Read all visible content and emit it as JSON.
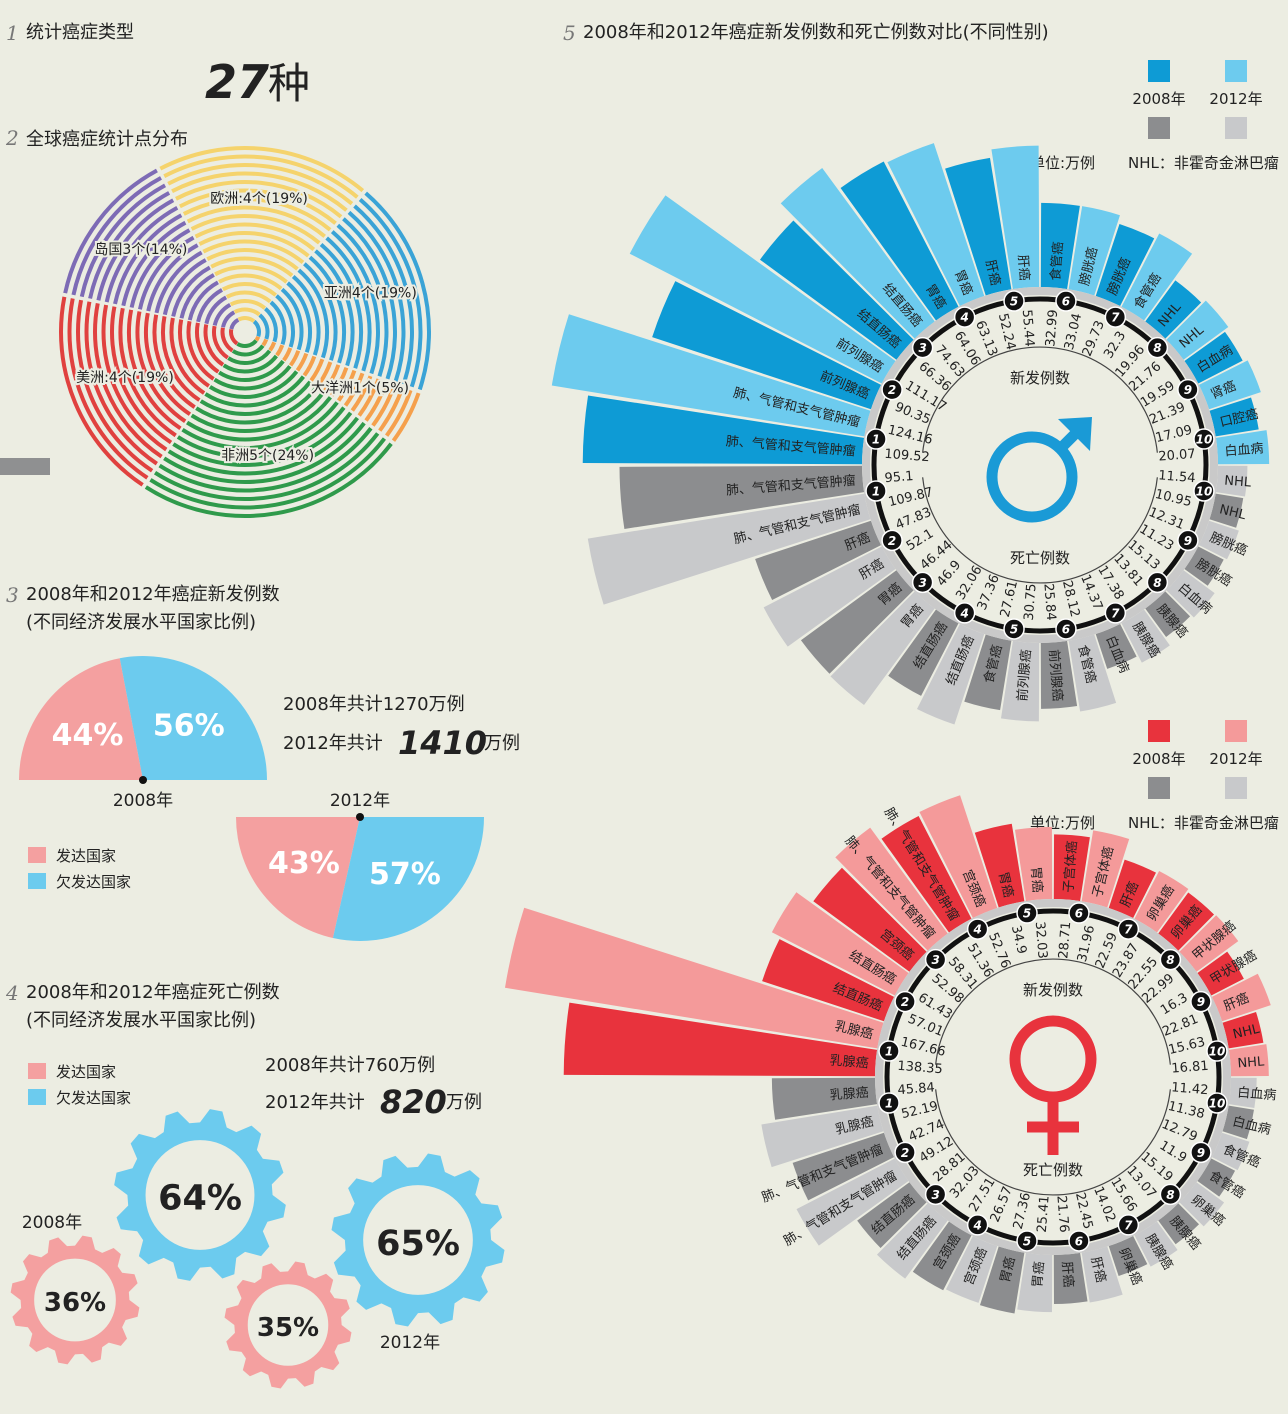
{
  "header": {
    "section": "1",
    "title": "统计癌症类型",
    "value": "27",
    "unit": "种"
  },
  "chart_data": [
    {
      "type": "ring-pie",
      "section": "2",
      "title": "全球癌症统计点分布",
      "values": [
        19,
        19,
        5,
        24,
        19,
        14
      ],
      "value_labels": [
        "欧洲:4个(19%)",
        "亚洲4个(19%)",
        "大洋洲1个(5%)",
        "非洲5个(24%)",
        "美洲:4个(19%)",
        "岛国3个(14%)"
      ],
      "colors": [
        "#f5d36c",
        "#3aa3d6",
        "#f5a04c",
        "#2f9a4b",
        "#e0413f",
        "#7d6bb5"
      ]
    },
    {
      "type": "half-pie",
      "section": "3",
      "title": "2008年和2012年癌症新发例数",
      "subtitle": "(不同经济发展水平国家比例)",
      "categories": [
        "2008年",
        "2012年"
      ],
      "series": [
        {
          "name": "发达国家",
          "color": "#f4a0a0",
          "values": [
            44,
            43
          ],
          "value_labels": [
            "44%",
            "43%"
          ]
        },
        {
          "name": "欠发达国家",
          "color": "#6ccbee",
          "values": [
            56,
            57
          ],
          "value_labels": [
            "56%",
            "57%"
          ]
        }
      ],
      "annotations": [
        "2008年共计1270万例",
        "2012年共计",
        "1410",
        "万例"
      ]
    },
    {
      "type": "gear",
      "section": "4",
      "title": "2008年和2012年癌症死亡例数",
      "subtitle": "(不同经济发展水平国家比例)",
      "categories": [
        "2008年",
        "2012年"
      ],
      "series": [
        {
          "name": "发达国家",
          "color": "#f4a0a0",
          "values": [
            36,
            35
          ],
          "value_labels": [
            "36%",
            "35%"
          ]
        },
        {
          "name": "欠发达国家",
          "color": "#6ccbee",
          "values": [
            64,
            65
          ],
          "value_labels": [
            "64%",
            "65%"
          ]
        }
      ],
      "annotations": [
        "2008年共计760万例",
        "2012年共计",
        "820",
        "万例"
      ]
    },
    {
      "type": "radial-bar",
      "section": "5",
      "title": "2008年和2012年癌症新发例数和死亡例数对比(不同性别)",
      "legend": [
        "2008年",
        "2012年"
      ],
      "unit": "单位:万例",
      "note": "NHL：非霍奇金淋巴瘤",
      "ranks": [
        1,
        2,
        3,
        4,
        5,
        6,
        7,
        8,
        9,
        10
      ],
      "groups": [
        {
          "name": "新发例数",
          "series": [
            {
              "color": "#0e9bd5",
              "categories": [
                "肺、气管和支气管肿瘤",
                "前列腺癌",
                "结直肠癌",
                "胃癌",
                "肝癌",
                "食管癌",
                "膀胱癌",
                "NHL",
                "白血病",
                "口腔癌"
              ],
              "values": [
                109.52,
                90.35,
                66.36,
                64.06,
                52.24,
                32.99,
                29.73,
                19.96,
                19.59,
                17.09
              ]
            },
            {
              "color": "#6dcbee",
              "categories": [
                "肺、气管和支气管肿瘤",
                "前列腺癌",
                "结直肠癌",
                "胃癌",
                "肝癌",
                "膀胱癌",
                "食管癌",
                "NHL",
                "肾癌",
                "白血病"
              ],
              "values": [
                124.16,
                111.17,
                74.63,
                63.13,
                55.44,
                33.04,
                32.3,
                21.76,
                21.39,
                20.07
              ]
            }
          ]
        },
        {
          "name": "死亡例数",
          "series": [
            {
              "color": "#8c8d8f",
              "categories": [
                "肺、气管和支气管肿瘤",
                "肝癌",
                "胃癌",
                "结直肠癌",
                "食管癌",
                "前列腺癌",
                "白血病",
                "胰腺癌",
                "膀胱癌",
                "NHL"
              ],
              "values": [
                95.1,
                47.83,
                46.44,
                32.06,
                27.61,
                25.84,
                14.37,
                13.81,
                11.23,
                10.95
              ]
            },
            {
              "color": "#c8c9cb",
              "categories": [
                "肺、气管和支气管肿瘤",
                "肝癌",
                "胃癌",
                "结直肠癌",
                "前列腺癌",
                "食管癌",
                "胰腺癌",
                "白血病",
                "膀胱癌",
                "NHL"
              ],
              "values": [
                109.87,
                52.1,
                46.9,
                37.36,
                30.75,
                28.12,
                17.38,
                15.13,
                12.31,
                11.54
              ]
            }
          ]
        }
      ]
    },
    {
      "type": "radial-bar",
      "legend": [
        "2008年",
        "2012年"
      ],
      "unit": "单位:万例",
      "note": "NHL：非霍奇金淋巴瘤",
      "ranks": [
        1,
        2,
        3,
        4,
        5,
        6,
        7,
        8,
        9,
        10
      ],
      "groups": [
        {
          "name": "新发例数",
          "series": [
            {
              "color": "#e8333d",
              "categories": [
                "乳腺癌",
                "结直肠癌",
                "宫颈癌",
                "肺、气管和支气管肿瘤",
                "胃癌",
                "子宫体癌",
                "肝癌",
                "卵巢癌",
                "甲状腺癌",
                "NHL"
              ],
              "values": [
                138.35,
                57.01,
                52.98,
                51.36,
                34.9,
                28.71,
                22.59,
                22.55,
                16.3,
                15.63
              ]
            },
            {
              "color": "#f49a9a",
              "categories": [
                "乳腺癌",
                "结直肠癌",
                "肺、气管和支气管肿瘤",
                "宫颈癌",
                "胃癌",
                "子宫体癌",
                "卵巢癌",
                "甲状腺癌",
                "肝癌",
                "NHL"
              ],
              "values": [
                167.66,
                61.43,
                58.31,
                52.76,
                32.03,
                31.96,
                23.87,
                22.99,
                22.81,
                16.81
              ]
            }
          ]
        },
        {
          "name": "死亡例数",
          "series": [
            {
              "color": "#8c8d8f",
              "categories": [
                "乳腺癌",
                "肺、气管和支气管肿瘤",
                "结直肠癌",
                "宫颈癌",
                "胃癌",
                "肝癌",
                "卵巢癌",
                "胰腺癌",
                "食管癌",
                "白血病"
              ],
              "values": [
                45.84,
                42.74,
                28.81,
                27.51,
                27.36,
                21.76,
                14.02,
                13.07,
                11.9,
                11.38
              ]
            },
            {
              "color": "#c8c9cb",
              "categories": [
                "乳腺癌",
                "肺、气管和支气管肿瘤",
                "结直肠癌",
                "宫颈癌",
                "胃癌",
                "肝癌",
                "胰腺癌",
                "卵巢癌",
                "食管癌",
                "白血病"
              ],
              "values": [
                52.19,
                49.12,
                32.03,
                26.57,
                25.41,
                22.45,
                15.66,
                15.19,
                12.79,
                11.42
              ]
            }
          ]
        }
      ]
    }
  ]
}
